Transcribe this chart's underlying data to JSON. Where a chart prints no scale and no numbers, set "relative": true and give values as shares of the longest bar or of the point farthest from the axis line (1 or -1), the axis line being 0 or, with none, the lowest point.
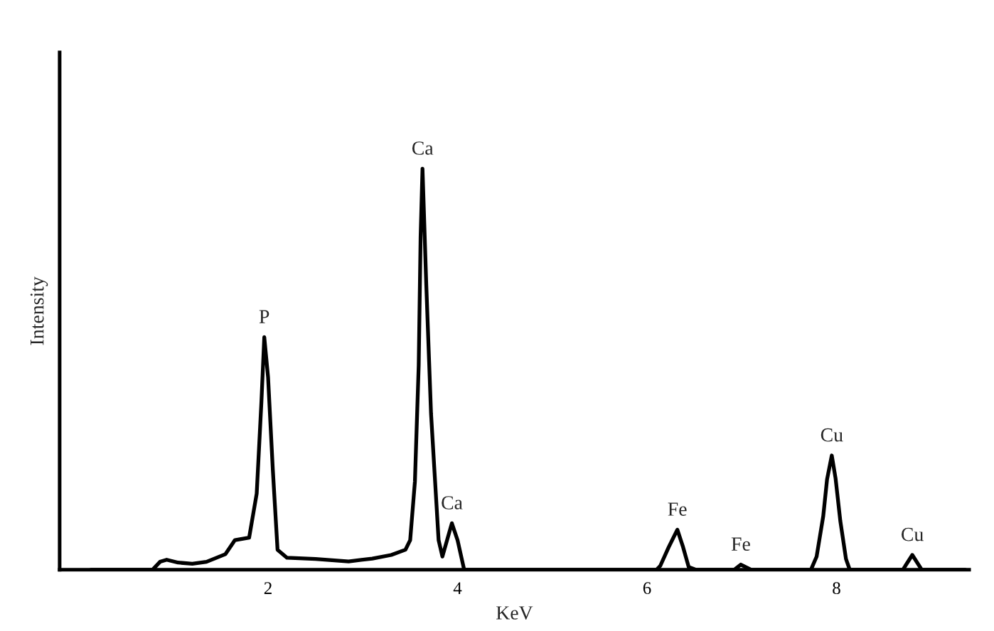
{
  "chart_data": {
    "type": "line",
    "xlabel": "KeV",
    "ylabel": "Intensity",
    "relative": true,
    "xlim": [
      -0.2,
      9.4
    ],
    "xticks": [
      2,
      4,
      6,
      8
    ],
    "line_style": "solid",
    "series": [
      {
        "color": "#000000",
        "x": [
          0.13,
          0.78,
          0.86,
          0.93,
          1.05,
          1.2,
          1.35,
          1.55,
          1.65,
          1.8,
          1.88,
          1.93,
          1.96,
          2.0,
          2.05,
          2.1,
          2.2,
          2.5,
          2.85,
          3.1,
          3.3,
          3.45,
          3.5,
          3.55,
          3.59,
          3.61,
          3.63,
          3.67,
          3.72,
          3.8,
          3.84,
          3.94,
          4.0,
          4.07,
          6.1,
          6.14,
          6.23,
          6.32,
          6.38,
          6.44,
          6.52,
          6.92,
          6.99,
          7.1,
          7.73,
          7.79,
          7.86,
          7.9,
          7.95,
          7.99,
          8.04,
          8.1,
          8.14,
          8.7,
          8.8,
          8.9,
          9.36
        ],
        "values": [
          0,
          0,
          0.02,
          0.025,
          0.018,
          0.015,
          0.02,
          0.039,
          0.074,
          0.08,
          0.19,
          0.42,
          0.58,
          0.48,
          0.25,
          0.05,
          0.03,
          0.027,
          0.021,
          0.028,
          0.037,
          0.05,
          0.074,
          0.22,
          0.51,
          0.83,
          1,
          0.71,
          0.39,
          0.074,
          0.033,
          0.116,
          0.074,
          0,
          0,
          0.01,
          0.057,
          0.1,
          0.057,
          0.007,
          0,
          0,
          0.013,
          0,
          0,
          0.033,
          0.134,
          0.225,
          0.285,
          0.228,
          0.122,
          0.027,
          0,
          0,
          0.037,
          0,
          0
        ]
      }
    ],
    "annotations": [
      {
        "text": "P",
        "x": 1.96,
        "y": 0.58
      },
      {
        "text": "Ca",
        "x": 3.63,
        "y": 1
      },
      {
        "text": "Ca",
        "x": 3.94,
        "y": 0.116
      },
      {
        "text": "Fe",
        "x": 6.32,
        "y": 0.1
      },
      {
        "text": "Fe",
        "x": 6.99,
        "y": 0.013
      },
      {
        "text": "Cu",
        "x": 7.95,
        "y": 0.285
      },
      {
        "text": "Cu",
        "x": 8.8,
        "y": 0.037
      }
    ]
  }
}
